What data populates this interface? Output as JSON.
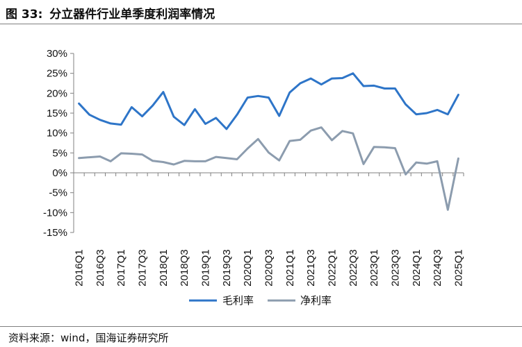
{
  "figure": {
    "number": "图 33:",
    "title": "分立器件行业单季度利润率情况"
  },
  "source": "资料来源：wind，国海证券研究所",
  "chart_data": {
    "type": "line",
    "title": "分立器件行业单季度利润率情况",
    "xlabel": "",
    "ylabel": "",
    "ylim": [
      -15,
      30
    ],
    "y_ticks": [
      "30%",
      "25%",
      "20%",
      "15%",
      "10%",
      "5%",
      "0%",
      "-5%",
      "-10%",
      "-15%"
    ],
    "y_tick_values": [
      30,
      25,
      20,
      15,
      10,
      5,
      0,
      -5,
      -10,
      -15
    ],
    "grid": false,
    "legend_position": "bottom",
    "x": [
      "2016Q1",
      "2016Q2",
      "2016Q3",
      "2016Q4",
      "2017Q1",
      "2017Q2",
      "2017Q3",
      "2017Q4",
      "2018Q1",
      "2018Q2",
      "2018Q3",
      "2018Q4",
      "2019Q1",
      "2019Q2",
      "2019Q3",
      "2019Q4",
      "2020Q1",
      "2020Q2",
      "2020Q3",
      "2020Q4",
      "2021Q1",
      "2021Q2",
      "2021Q3",
      "2021Q4",
      "2022Q1",
      "2022Q2",
      "2022Q3",
      "2022Q4",
      "2023Q1",
      "2023Q2",
      "2023Q3",
      "2023Q4",
      "2024Q1",
      "2024Q2",
      "2024Q3",
      "2024Q4",
      "2025Q1"
    ],
    "x_tick_labels": [
      "2016Q1",
      "2016Q3",
      "2017Q1",
      "2017Q3",
      "2018Q1",
      "2018Q3",
      "2019Q1",
      "2019Q3",
      "2020Q1",
      "2020Q3",
      "2021Q1",
      "2021Q3",
      "2022Q1",
      "2022Q3",
      "2023Q1",
      "2023Q3",
      "2024Q1",
      "2024Q3",
      "2025Q1"
    ],
    "series": [
      {
        "name": "毛利率",
        "color": "#2e75c8",
        "values": [
          17.4,
          14.6,
          13.3,
          12.4,
          12.1,
          16.5,
          14.2,
          16.9,
          20.3,
          14.1,
          12.0,
          16.0,
          12.3,
          13.8,
          11.0,
          14.6,
          18.9,
          19.3,
          18.9,
          14.3,
          20.2,
          22.5,
          23.7,
          22.2,
          23.7,
          23.8,
          25.0,
          21.8,
          21.9,
          21.2,
          21.2,
          17.2,
          14.7,
          15.0,
          15.8,
          14.7,
          19.6
        ]
      },
      {
        "name": "净利率",
        "color": "#8c9cae",
        "values": [
          3.7,
          3.9,
          4.1,
          2.9,
          4.9,
          4.8,
          4.6,
          3.0,
          2.7,
          2.1,
          3.0,
          2.9,
          2.9,
          4.0,
          3.7,
          3.4,
          6.1,
          8.5,
          5.1,
          3.1,
          8.0,
          8.3,
          10.6,
          11.4,
          8.2,
          10.5,
          9.9,
          2.2,
          6.5,
          6.4,
          6.2,
          -0.4,
          2.6,
          2.3,
          2.9,
          -9.3,
          3.6
        ]
      }
    ]
  }
}
